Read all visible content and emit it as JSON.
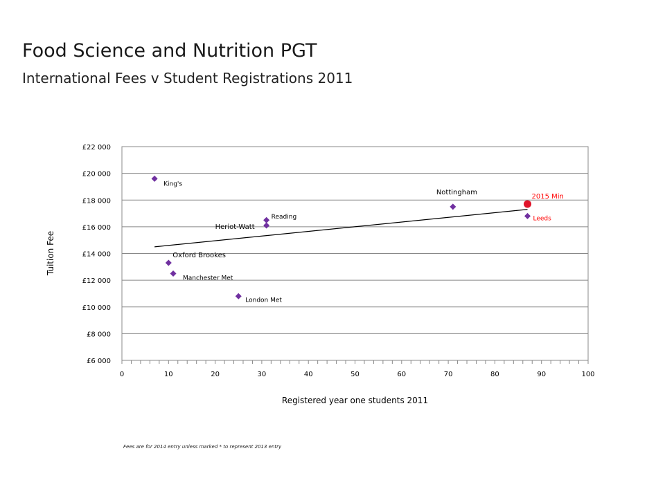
{
  "title": "Food Science and Nutrition PGT",
  "subtitle": "International Fees v Student Registrations 2011",
  "footnote": "Fees are for 2014 entry unless marked * to represent 2013 entry",
  "colors": {
    "point": "#7030a0",
    "highlight": "#ff0000",
    "highlight_marker": "#e0142a",
    "trendline": "#000000",
    "gridline": "#888888"
  },
  "chart_data": {
    "type": "scatter",
    "xlabel": "Registered year one students 2011",
    "ylabel": "Tuition Fee",
    "xlim": [
      0,
      100
    ],
    "ylim": [
      6000,
      22000
    ],
    "x_ticks": [
      "0",
      "10",
      "20",
      "30",
      "40",
      "50",
      "60",
      "70",
      "80",
      "90",
      "100"
    ],
    "y_ticks": [
      "£6 000",
      "£8 000",
      "£10 000",
      "£12 000",
      "£14 000",
      "£16 000",
      "£18 000",
      "£20 000",
      "£22 000"
    ],
    "grid": "horizontal",
    "points": [
      {
        "label": "King's",
        "x": 7,
        "y": 19600
      },
      {
        "label": "Nottingham",
        "x": 71,
        "y": 17500
      },
      {
        "label": "Reading",
        "x": 31,
        "y": 16500
      },
      {
        "label": "Heriot-Watt",
        "x": 31,
        "y": 16100
      },
      {
        "label": "Leeds",
        "x": 87,
        "y": 16800
      },
      {
        "label": "Oxford Brookes",
        "x": 10,
        "y": 13300
      },
      {
        "label": "Manchester Met",
        "x": 11,
        "y": 12500
      },
      {
        "label": "London Met",
        "x": 25,
        "y": 10800
      }
    ],
    "highlight": {
      "label": "2015 Min",
      "x": 87,
      "y": 17700
    },
    "trendline": {
      "x": [
        7,
        87
      ],
      "y": [
        14500,
        17300
      ]
    }
  }
}
